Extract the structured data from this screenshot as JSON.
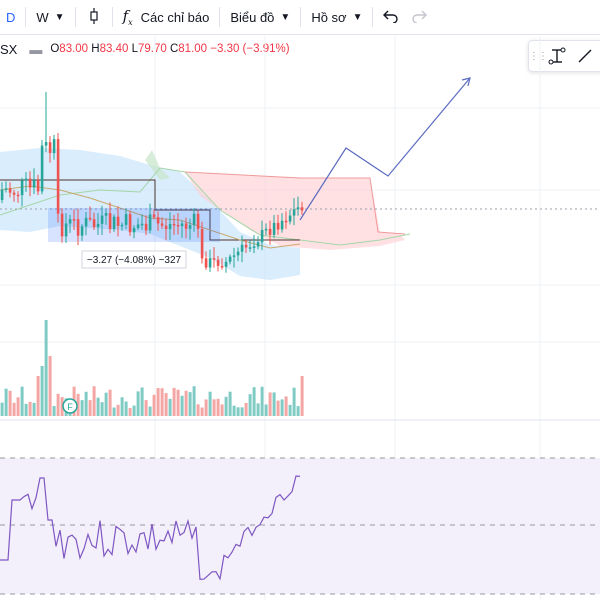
{
  "toolbar": {
    "interval_label": "D",
    "symbol_letter": "W",
    "indicators_label": "Các chỉ báo",
    "chart_type_label": "Biểu đồ",
    "profile_label": "Hồ sơ"
  },
  "legend": {
    "symbol": "SX",
    "open_key": "O",
    "open_val": "83.00",
    "high_key": "H",
    "high_val": "83.40",
    "low_key": "L",
    "low_val": "79.70",
    "close_key": "C",
    "close_val": "81.00",
    "change_val": "−3.30 (−3.91%)"
  },
  "measure_label": "−3.27 (−4.08%) −327",
  "volume_marker": "F",
  "colors": {
    "up": "#26a69a",
    "down": "#ef5350",
    "accent": "#2962ff",
    "rsi_line": "#7e57c2",
    "rsi_band": "#f0ecfa"
  }
}
